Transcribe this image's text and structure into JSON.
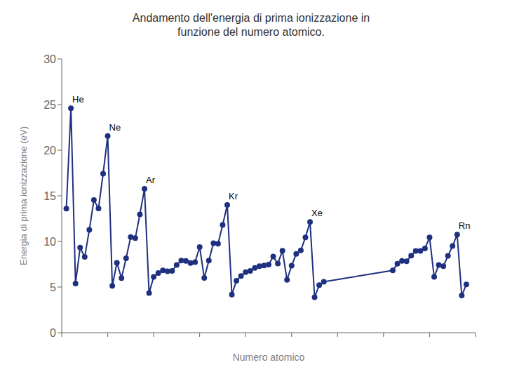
{
  "chart_data": {
    "type": "line",
    "title": "Andamento dell'energia di prima ionizzazione in\nfunzione del numero atomico.",
    "xlabel": "Numero atomico",
    "ylabel": "Energia di prima ionizzazione (eV)",
    "color": "#1F3080",
    "marker": "circle",
    "grid": false,
    "tick_labels": "y",
    "xlim": [
      0,
      90
    ],
    "xticks": [
      0,
      10,
      20,
      30,
      40,
      50,
      60,
      70,
      80,
      90
    ],
    "ylim": [
      0,
      30
    ],
    "yticks": [
      0,
      5,
      10,
      15,
      20,
      25,
      30
    ],
    "annotations": [
      {
        "text": "He",
        "x": 2,
        "y": 24.59
      },
      {
        "text": "Ne",
        "x": 10,
        "y": 21.56
      },
      {
        "text": "Ar",
        "x": 18,
        "y": 15.76
      },
      {
        "text": "Kr",
        "x": 36,
        "y": 14.0
      },
      {
        "text": "Xe",
        "x": 54,
        "y": 12.13
      },
      {
        "text": "Rn",
        "x": 86,
        "y": 10.75
      }
    ],
    "x": [
      1,
      2,
      3,
      4,
      5,
      6,
      7,
      8,
      9,
      10,
      11,
      12,
      13,
      14,
      15,
      16,
      17,
      18,
      19,
      20,
      21,
      22,
      23,
      24,
      25,
      26,
      27,
      28,
      29,
      30,
      31,
      32,
      33,
      34,
      35,
      36,
      37,
      38,
      39,
      40,
      41,
      42,
      43,
      44,
      45,
      46,
      47,
      48,
      49,
      50,
      51,
      52,
      53,
      54,
      55,
      56,
      57,
      72,
      73,
      74,
      75,
      76,
      77,
      78,
      79,
      80,
      81,
      82,
      83,
      84,
      85,
      86,
      87,
      88
    ],
    "values": [
      13.6,
      24.59,
      5.39,
      9.32,
      8.3,
      11.26,
      14.53,
      13.62,
      17.42,
      21.56,
      5.14,
      7.65,
      5.99,
      8.15,
      10.49,
      10.36,
      12.97,
      15.76,
      4.34,
      6.11,
      6.54,
      6.83,
      6.74,
      6.77,
      7.43,
      7.9,
      7.86,
      7.64,
      7.73,
      9.39,
      6.0,
      7.9,
      9.81,
      9.75,
      11.81,
      14.0,
      4.18,
      5.69,
      6.22,
      6.63,
      6.76,
      7.09,
      7.28,
      7.36,
      7.46,
      8.34,
      7.58,
      8.99,
      5.79,
      7.34,
      8.64,
      9.01,
      10.45,
      12.13,
      3.89,
      5.21,
      5.58,
      6.83,
      7.55,
      7.86,
      7.83,
      8.44,
      8.97,
      8.96,
      9.23,
      10.44,
      6.11,
      7.42,
      7.29,
      8.42,
      9.5,
      10.75,
      4.07,
      5.28
    ]
  }
}
